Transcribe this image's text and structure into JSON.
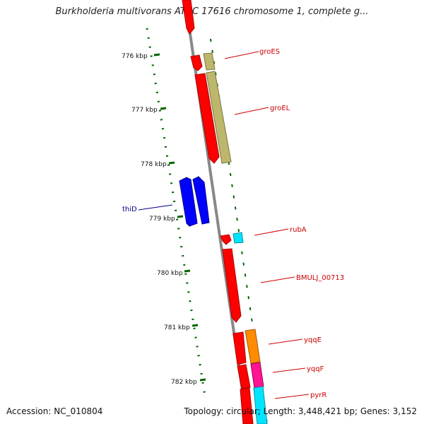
{
  "map": {
    "title": "Burkholderia multivorans ATCC 17616 chromosome 1, complete g...",
    "accession_label": "Accession: NC_010804",
    "topology_label": "Topology: circular; Length: 3,448,421 bp; Genes: 3,152",
    "ticks": [
      "776 kbp",
      "777 kbp",
      "778 kbp",
      "779 kbp",
      "780 kbp",
      "781 kbp",
      "782 kbp"
    ],
    "genes": [
      {
        "label": "groES",
        "color": "#cc0000",
        "track": "inner"
      },
      {
        "label": "groEL",
        "color": "#cc0000",
        "track": "inner"
      },
      {
        "label": "thiD",
        "color": "#00008b",
        "track": "inner"
      },
      {
        "label": "rubA",
        "color": "#cc0000",
        "track": "inner"
      },
      {
        "label": "BMULJ_00713",
        "color": "#cc0000",
        "track": "inner"
      },
      {
        "label": "yqqE",
        "color": "#cc0000",
        "track": "inner"
      },
      {
        "label": "yqqF",
        "color": "#cc0000",
        "track": "inner"
      },
      {
        "label": "pyrR",
        "color": "#cc0000",
        "track": "inner"
      }
    ],
    "colors": {
      "cds": "#ff0000",
      "blue_cds": "#0000ff",
      "khaki": "#bdb76b",
      "cyan": "#00e5ff",
      "orange": "#ff8c00",
      "magenta": "#ff1493",
      "backbone": "#888888",
      "tick": "#006400"
    }
  }
}
